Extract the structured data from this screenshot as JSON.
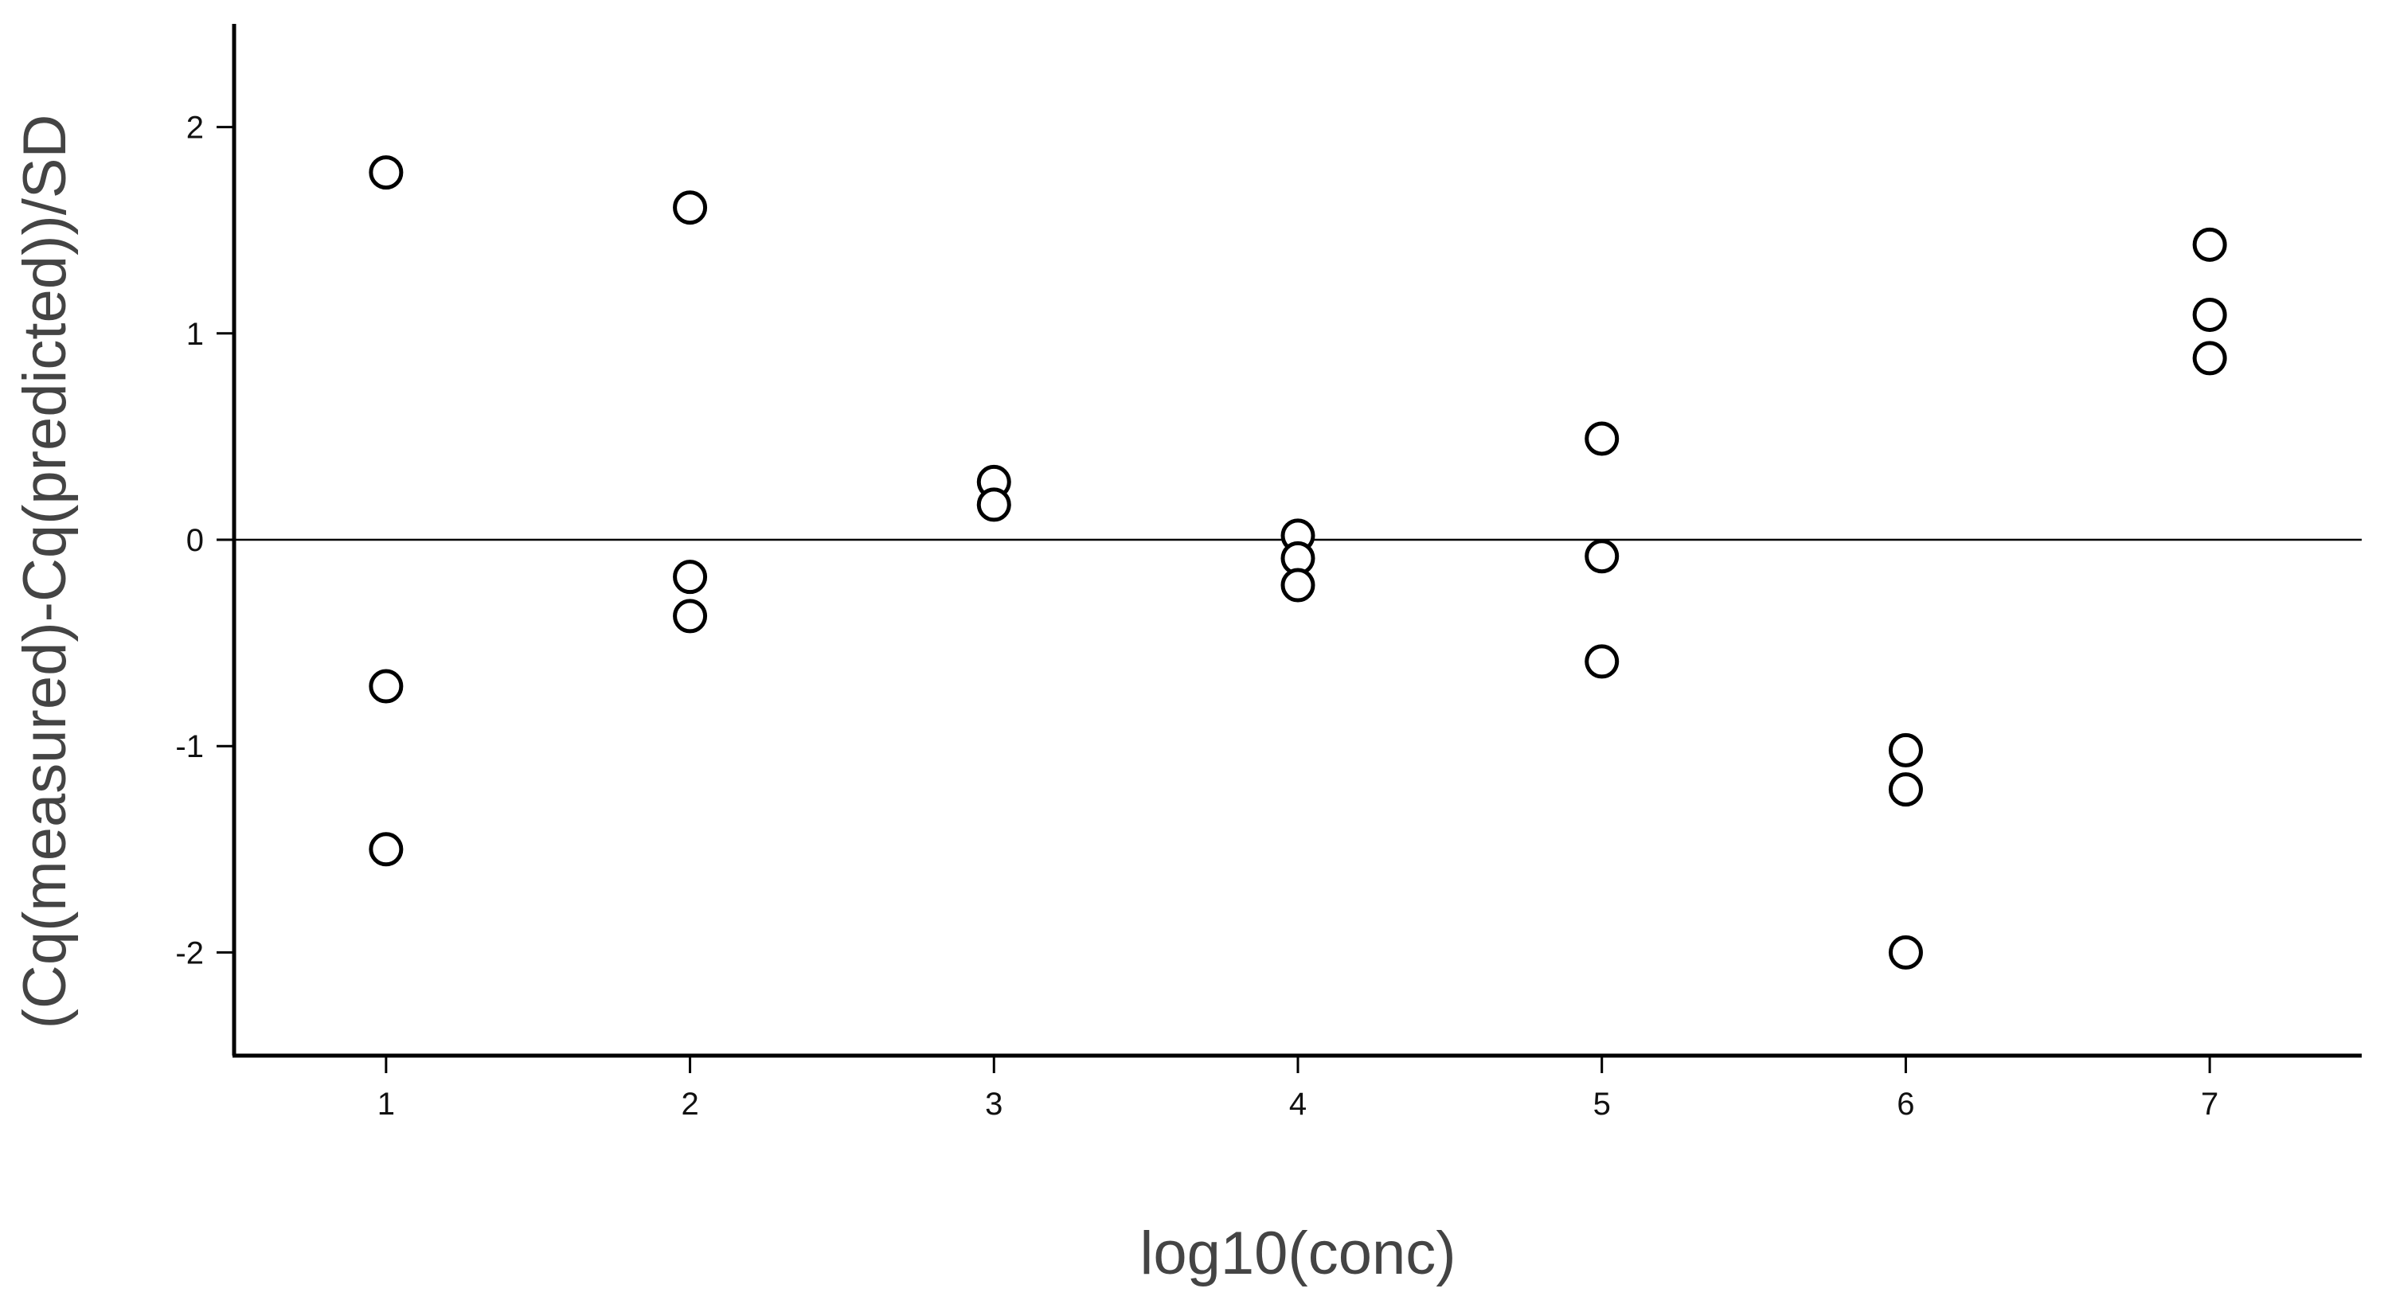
{
  "chart_data": {
    "type": "scatter",
    "title": "",
    "xlabel": "log10(conc)",
    "ylabel": "(Cq(measured)-Cq(predicted))/SD",
    "xlim": [
      0.5,
      7.5
    ],
    "ylim": [
      -2.5,
      2.5
    ],
    "x_ticks": [
      1,
      2,
      3,
      4,
      5,
      6,
      7
    ],
    "y_ticks": [
      -2,
      -1,
      0,
      1,
      2
    ],
    "reference_line_y": 0,
    "grid": false,
    "legend": "none",
    "marker": "open-circle",
    "colors": {
      "axis": "#000000",
      "marker_stroke": "#000000",
      "marker_fill": "#ffffff"
    },
    "points": [
      {
        "x": 1,
        "y": 1.78
      },
      {
        "x": 1,
        "y": -0.71
      },
      {
        "x": 1,
        "y": -1.5
      },
      {
        "x": 2,
        "y": 1.61
      },
      {
        "x": 2,
        "y": -0.18
      },
      {
        "x": 2,
        "y": -0.37
      },
      {
        "x": 3,
        "y": 0.28
      },
      {
        "x": 3,
        "y": 0.17
      },
      {
        "x": 4,
        "y": 0.02
      },
      {
        "x": 4,
        "y": -0.09
      },
      {
        "x": 4,
        "y": -0.22
      },
      {
        "x": 5,
        "y": 0.49
      },
      {
        "x": 5,
        "y": -0.08
      },
      {
        "x": 5,
        "y": -0.59
      },
      {
        "x": 6,
        "y": -1.02
      },
      {
        "x": 6,
        "y": -1.21
      },
      {
        "x": 6,
        "y": -2.0
      },
      {
        "x": 7,
        "y": 1.43
      },
      {
        "x": 7,
        "y": 1.09
      },
      {
        "x": 7,
        "y": 0.88
      }
    ]
  }
}
